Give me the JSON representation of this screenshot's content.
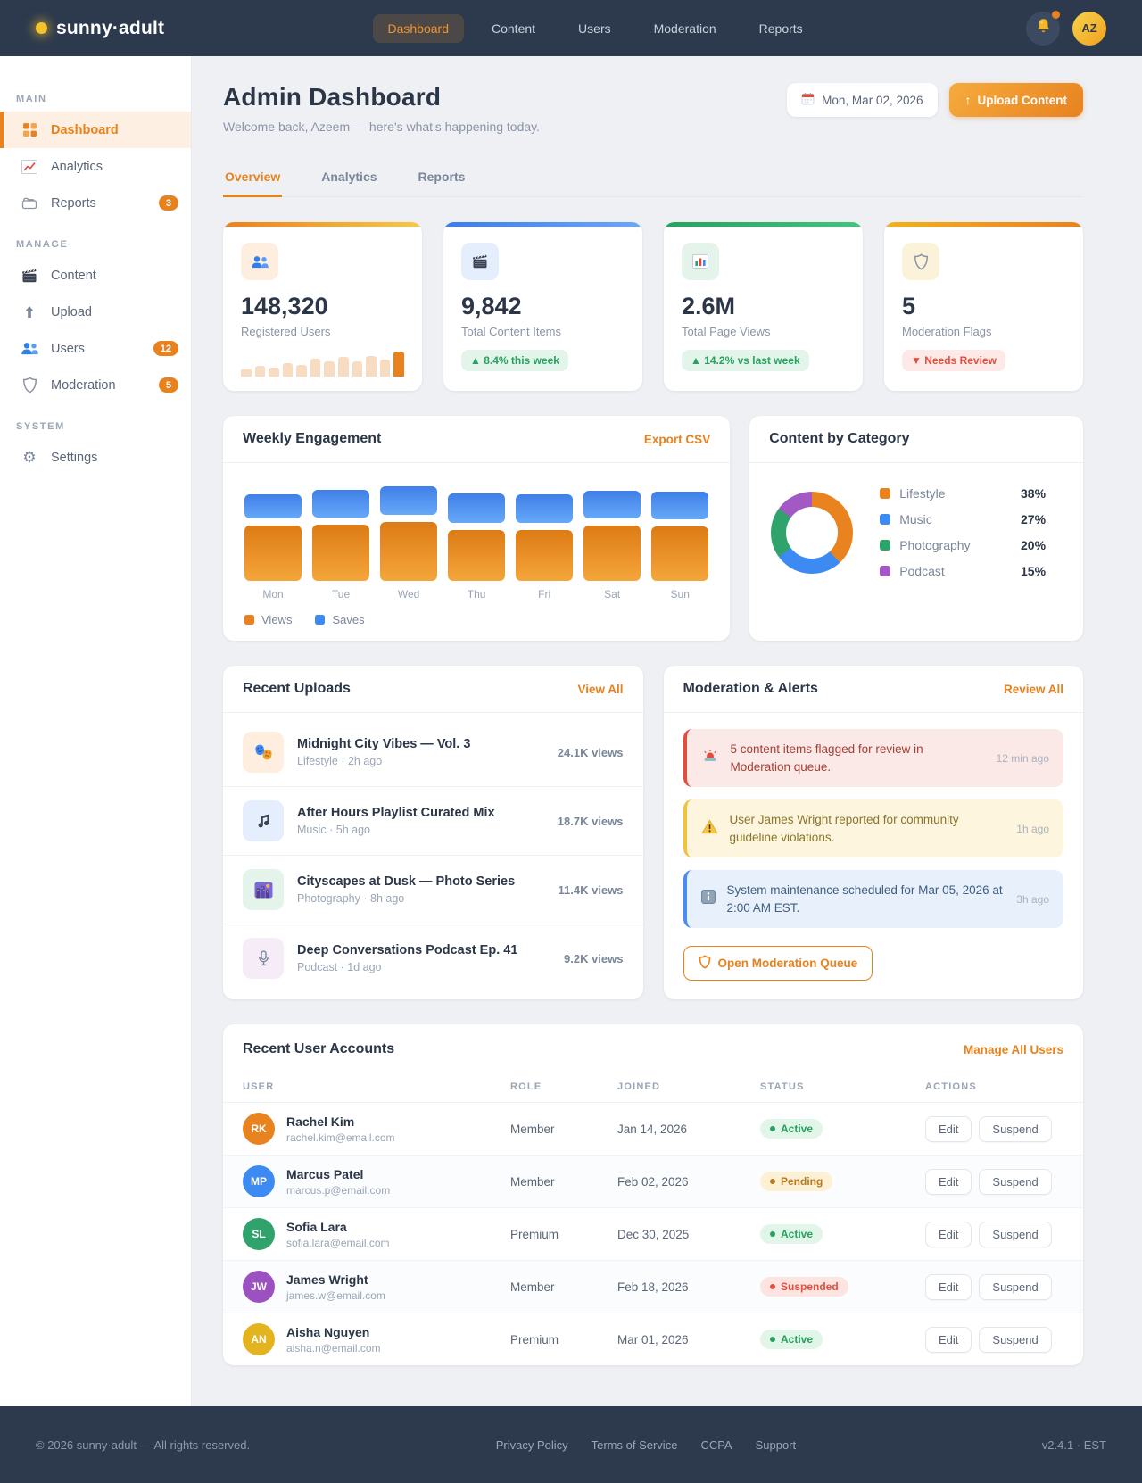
{
  "navbar": {
    "brand": "sunny·adult",
    "items": [
      {
        "label": "Dashboard",
        "active": true
      },
      {
        "label": "Content"
      },
      {
        "label": "Users"
      },
      {
        "label": "Moderation"
      },
      {
        "label": "Reports"
      }
    ],
    "avatar_initials": "AZ"
  },
  "sidebar": {
    "sections": [
      {
        "title": "MAIN",
        "items": [
          {
            "icon": "dashboard",
            "label": "Dashboard",
            "active": true
          },
          {
            "icon": "analytics",
            "label": "Analytics"
          },
          {
            "icon": "reports",
            "label": "Reports",
            "badge": "3"
          }
        ]
      },
      {
        "title": "MANAGE",
        "items": [
          {
            "icon": "content",
            "label": "Content"
          },
          {
            "icon": "upload",
            "label": "Upload"
          },
          {
            "icon": "users",
            "label": "Users",
            "badge": "12"
          },
          {
            "icon": "moderation",
            "label": "Moderation",
            "badge": "5"
          }
        ]
      },
      {
        "title": "SYSTEM",
        "items": [
          {
            "icon": "settings",
            "label": "Settings"
          }
        ]
      }
    ]
  },
  "header": {
    "title": "Admin Dashboard",
    "subtitle": "Welcome back, Azeem — here's what's happening today.",
    "date": "Mon, Mar 02, 2026",
    "upload_button": "Upload Content"
  },
  "tabs": [
    {
      "label": "Overview",
      "active": true
    },
    {
      "label": "Analytics"
    },
    {
      "label": "Reports"
    }
  ],
  "stats": [
    {
      "icon": "users",
      "accent": "orange",
      "tile": "orange",
      "value": "148,320",
      "label": "Registered Users",
      "spark": [
        9,
        12,
        10,
        15,
        13,
        20,
        17,
        22,
        17,
        23,
        19,
        28
      ]
    },
    {
      "icon": "content",
      "accent": "blue",
      "tile": "blue",
      "value": "9,842",
      "label": "Total Content Items",
      "delta": "▲ 8.4% this week",
      "delta_type": "up"
    },
    {
      "icon": "chart",
      "accent": "green",
      "tile": "green",
      "value": "2.6M",
      "label": "Total Page Views",
      "delta": "▲ 14.2% vs last week",
      "delta_type": "up"
    },
    {
      "icon": "moderation",
      "accent": "gold",
      "tile": "gold",
      "value": "5",
      "label": "Moderation Flags",
      "delta": "▼ Needs Review",
      "delta_type": "down"
    }
  ],
  "weekly": {
    "title": "Weekly Engagement",
    "action": "Export CSV",
    "chart_data": {
      "type": "bar",
      "stacked": true,
      "categories": [
        "Mon",
        "Tue",
        "Wed",
        "Thu",
        "Fri",
        "Sat",
        "Sun"
      ],
      "series": [
        {
          "name": "Views",
          "color": "#e8821e",
          "values": [
            62,
            63,
            66,
            57,
            57,
            62,
            61
          ]
        },
        {
          "name": "Saves",
          "color": "#3d8bf2",
          "values": [
            27,
            31,
            32,
            33,
            32,
            31,
            31
          ]
        }
      ],
      "unit": "relative bar height (px), no numeric axis shown",
      "legend_position": "bottom-left",
      "grid": false
    }
  },
  "category": {
    "title": "Content by Category",
    "chart_data": {
      "type": "pie",
      "labels": [
        "Lifestyle",
        "Music",
        "Photography",
        "Podcast"
      ],
      "values": [
        38,
        27,
        20,
        15
      ],
      "colors": [
        "#e8831f",
        "#3d8bf2",
        "#2fa36b",
        "#a259c4"
      ],
      "donut": true,
      "start_angle": "top, clockwise"
    }
  },
  "uploads": {
    "title": "Recent Uploads",
    "action": "View All",
    "items": [
      {
        "icon": "masks",
        "tile": "orange",
        "title": "Midnight City Vibes — Vol. 3",
        "meta": "Lifestyle · 2h ago",
        "views": "24.1K views"
      },
      {
        "icon": "music",
        "tile": "blue",
        "title": "After Hours Playlist Curated Mix",
        "meta": "Music · 5h ago",
        "views": "18.7K views"
      },
      {
        "icon": "city",
        "tile": "green",
        "title": "Cityscapes at Dusk — Photo Series",
        "meta": "Photography · 8h ago",
        "views": "11.4K views"
      },
      {
        "icon": "mic",
        "tile": "purple",
        "title": "Deep Conversations Podcast Ep. 41",
        "meta": "Podcast · 1d ago",
        "views": "9.2K views"
      }
    ]
  },
  "alerts": {
    "title": "Moderation & Alerts",
    "action": "Review All",
    "items": [
      {
        "type": "danger",
        "icon": "siren",
        "text": "5 content items flagged for review in Moderation queue.",
        "time": "12 min ago"
      },
      {
        "type": "warning",
        "icon": "warning",
        "text": "User James Wright reported for community guideline violations.",
        "time": "1h ago"
      },
      {
        "type": "info",
        "icon": "info",
        "text": "System maintenance scheduled for Mar 05, 2026 at 2:00 AM EST.",
        "time": "3h ago"
      }
    ],
    "button": "Open Moderation Queue"
  },
  "users_table": {
    "title": "Recent User Accounts",
    "action": "Manage All Users",
    "columns": [
      "USER",
      "ROLE",
      "JOINED",
      "STATUS",
      "ACTIONS"
    ],
    "action_labels": [
      "Edit",
      "Suspend"
    ],
    "rows": [
      {
        "initials": "RK",
        "avatar_color": "#e8831f",
        "name": "Rachel Kim",
        "email": "rachel.kim@email.com",
        "role": "Member",
        "joined": "Jan 14, 2026",
        "status": "Active"
      },
      {
        "initials": "MP",
        "avatar_color": "#3d8bf2",
        "name": "Marcus Patel",
        "email": "marcus.p@email.com",
        "role": "Member",
        "joined": "Feb 02, 2026",
        "status": "Pending"
      },
      {
        "initials": "SL",
        "avatar_color": "#2fa36b",
        "name": "Sofia Lara",
        "email": "sofia.lara@email.com",
        "role": "Premium",
        "joined": "Dec 30, 2025",
        "status": "Active"
      },
      {
        "initials": "JW",
        "avatar_color": "#9b51c0",
        "name": "James Wright",
        "email": "james.w@email.com",
        "role": "Member",
        "joined": "Feb 18, 2026",
        "status": "Suspended"
      },
      {
        "initials": "AN",
        "avatar_color": "#e3b320",
        "name": "Aisha Nguyen",
        "email": "aisha.n@email.com",
        "role": "Premium",
        "joined": "Mar 01, 2026",
        "status": "Active"
      }
    ]
  },
  "footer": {
    "copyright": "© 2026 sunny·adult — All rights reserved.",
    "links": [
      "Privacy Policy",
      "Terms of Service",
      "CCPA",
      "Support"
    ],
    "version": "v2.4.1 · EST"
  }
}
